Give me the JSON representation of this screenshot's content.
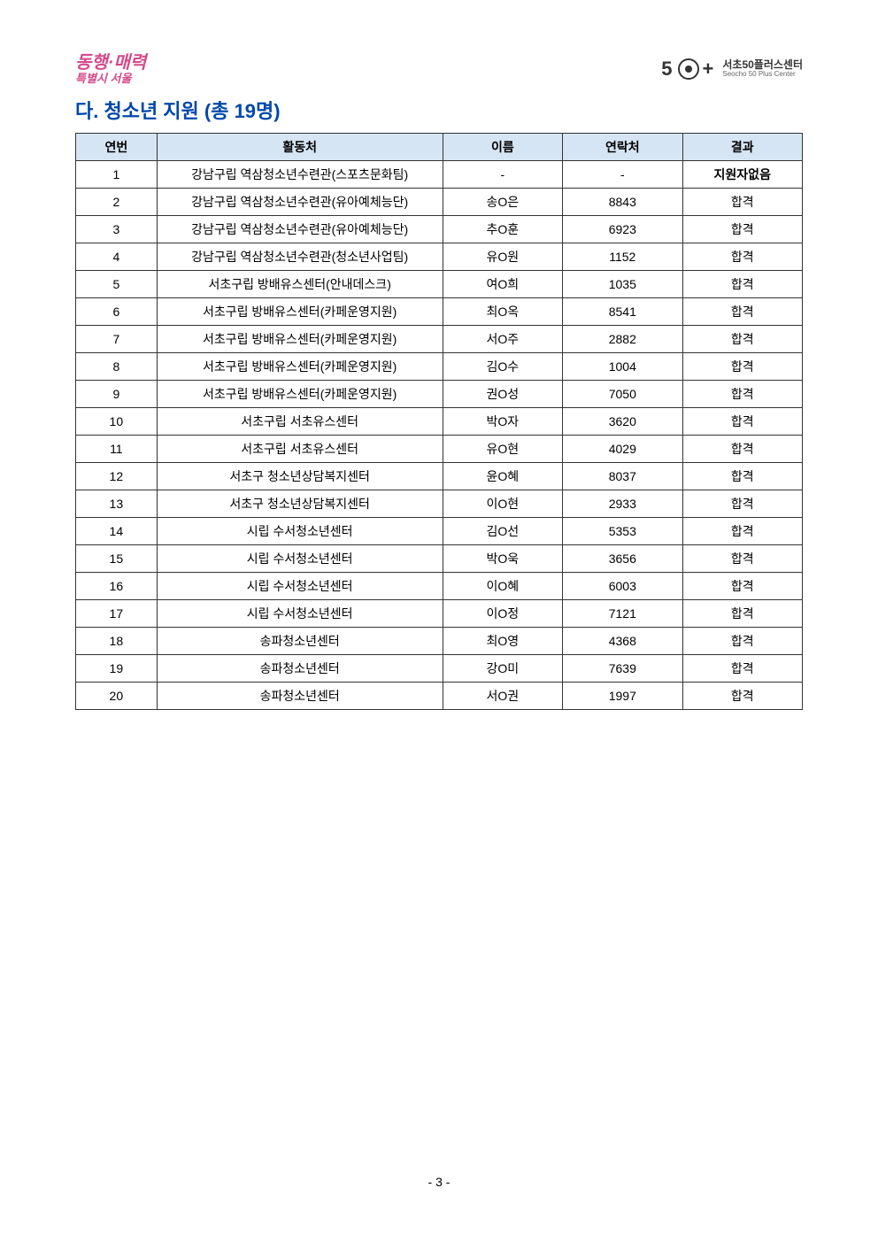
{
  "header": {
    "logo_left_main": "동행·매력",
    "logo_left_sub": "특별시 서울",
    "logo_right_fifty": "5",
    "logo_right_plus": "+",
    "logo_right_kr": "서초50플러스센터",
    "logo_right_en": "Seocho 50 Plus Center"
  },
  "section_title": "다. 청소년 지원 (총 19명)",
  "table": {
    "columns": [
      "연번",
      "활동처",
      "이름",
      "연락처",
      "결과"
    ],
    "rows": [
      {
        "num": "1",
        "place": "강남구립 역삼청소년수련관(스포츠문화팀)",
        "name": "-",
        "contact": "-",
        "result": "지원자없음",
        "bold": true
      },
      {
        "num": "2",
        "place": "강남구립 역삼청소년수련관(유아예체능단)",
        "name": "송O은",
        "contact": "8843",
        "result": "합격",
        "bold": false
      },
      {
        "num": "3",
        "place": "강남구립 역삼청소년수련관(유아예체능단)",
        "name": "추O훈",
        "contact": "6923",
        "result": "합격",
        "bold": false
      },
      {
        "num": "4",
        "place": "강남구립 역삼청소년수련관(청소년사업팀)",
        "name": "유O원",
        "contact": "1152",
        "result": "합격",
        "bold": false
      },
      {
        "num": "5",
        "place": "서초구립 방배유스센터(안내데스크)",
        "name": "여O희",
        "contact": "1035",
        "result": "합격",
        "bold": false
      },
      {
        "num": "6",
        "place": "서초구립 방배유스센터(카페운영지원)",
        "name": "최O옥",
        "contact": "8541",
        "result": "합격",
        "bold": false
      },
      {
        "num": "7",
        "place": "서초구립 방배유스센터(카페운영지원)",
        "name": "서O주",
        "contact": "2882",
        "result": "합격",
        "bold": false
      },
      {
        "num": "8",
        "place": "서초구립 방배유스센터(카페운영지원)",
        "name": "김O수",
        "contact": "1004",
        "result": "합격",
        "bold": false
      },
      {
        "num": "9",
        "place": "서초구립 방배유스센터(카페운영지원)",
        "name": "권O성",
        "contact": "7050",
        "result": "합격",
        "bold": false
      },
      {
        "num": "10",
        "place": "서초구립 서초유스센터",
        "name": "박O자",
        "contact": "3620",
        "result": "합격",
        "bold": false
      },
      {
        "num": "11",
        "place": "서초구립 서초유스센터",
        "name": "유O현",
        "contact": "4029",
        "result": "합격",
        "bold": false
      },
      {
        "num": "12",
        "place": "서초구 청소년상담복지센터",
        "name": "윤O혜",
        "contact": "8037",
        "result": "합격",
        "bold": false
      },
      {
        "num": "13",
        "place": "서초구 청소년상담복지센터",
        "name": "이O현",
        "contact": "2933",
        "result": "합격",
        "bold": false
      },
      {
        "num": "14",
        "place": "시립 수서청소년센터",
        "name": "김O선",
        "contact": "5353",
        "result": "합격",
        "bold": false
      },
      {
        "num": "15",
        "place": "시립 수서청소년센터",
        "name": "박O욱",
        "contact": "3656",
        "result": "합격",
        "bold": false
      },
      {
        "num": "16",
        "place": "시립 수서청소년센터",
        "name": "이O혜",
        "contact": "6003",
        "result": "합격",
        "bold": false
      },
      {
        "num": "17",
        "place": "시립 수서청소년센터",
        "name": "이O정",
        "contact": "7121",
        "result": "합격",
        "bold": false
      },
      {
        "num": "18",
        "place": "송파청소년센터",
        "name": "최O영",
        "contact": "4368",
        "result": "합격",
        "bold": false
      },
      {
        "num": "19",
        "place": "송파청소년센터",
        "name": "강O미",
        "contact": "7639",
        "result": "합격",
        "bold": false
      },
      {
        "num": "20",
        "place": "송파청소년센터",
        "name": "서O권",
        "contact": "1997",
        "result": "합격",
        "bold": false
      }
    ]
  },
  "page_number": "- 3 -"
}
